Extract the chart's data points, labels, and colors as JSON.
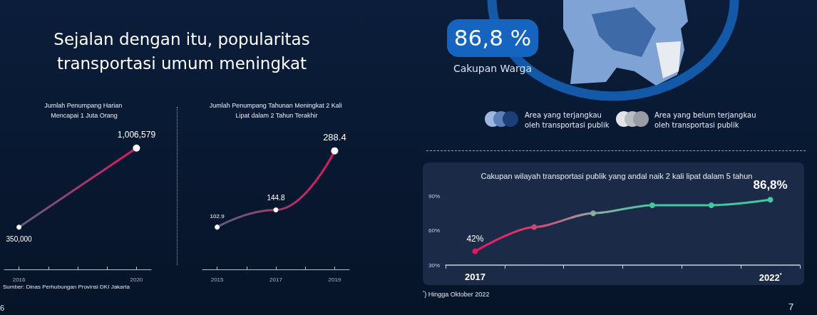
{
  "chart_data": [
    {
      "type": "other",
      "title": "Sejalan dengan itu, popularitas transportasi umum meningkat"
    },
    {
      "type": "line",
      "title": "Jumlah Penumpang Harian Mencapai 1 Juta Orang",
      "x": [
        2016,
        2020
      ],
      "xlim": [
        2015.5,
        2020.5
      ],
      "xticks": [
        2016,
        {
          "value": 2017,
          "label": null
        },
        {
          "value": 2018,
          "label": null
        },
        {
          "value": 2019,
          "label": null
        },
        2020
      ],
      "series": [
        {
          "color": "#e0185c",
          "values": [
            350000,
            1006579
          ],
          "value_labels": [
            "350,000",
            "1,006,579"
          ]
        }
      ],
      "marker": "circle",
      "tick_labels": "x",
      "annotations": [
        "Sumber: Dinas Perhubungan Provinsi DKI Jakarta",
        "6"
      ]
    },
    {
      "type": "line",
      "title": "Jumlah Penumpang Tahunan Meningkat 2 Kali Lipat dalam 2 Tahun Terakhir",
      "x": [
        2015,
        2017,
        2019
      ],
      "xlim": [
        2014.5,
        2019.5
      ],
      "xticks": [
        2015,
        {
          "value": 2016,
          "label": null
        },
        2017,
        {
          "value": 2018,
          "label": null
        },
        2019
      ],
      "series": [
        {
          "color": "#e0185c",
          "values": [
            102.9,
            144.8,
            288.4
          ]
        }
      ],
      "data_labels": true,
      "marker": "circle",
      "tick_labels": "x"
    },
    {
      "type": "other",
      "annotations": [
        "86,8 %",
        "Cakupan Warga",
        "Area yang terjangkau oleh transportasi publik",
        "Area yang belum terjangkau oleh transportasi publik"
      ]
    },
    {
      "type": "line",
      "title": "Cakupan wilayah transportasi publik yang andal naik 2 kali lipat dalam 5 tahun",
      "categories": [
        "2017",
        null,
        null,
        null,
        null,
        "2022$^{*}$"
      ],
      "ylim": [
        30,
        90
      ],
      "yticks": [
        {
          "value": 30,
          "label": "30%"
        },
        {
          "value": 60,
          "label": "60%"
        },
        {
          "value": 90,
          "label": "90%"
        }
      ],
      "series": [
        {
          "color": "#3cc39e",
          "colors": [
            "#e8175d",
            "#d93f72",
            "#8fa8a0",
            "#45c79f",
            "#45c79f",
            "#45c79f"
          ],
          "values": [
            42,
            63,
            75,
            82,
            82,
            86.8
          ],
          "value_labels": [
            "42%",
            null,
            null,
            null,
            null,
            "86,8%"
          ]
        }
      ],
      "marker": "circle",
      "annotations": [
        "$^{*}$) Hingga Oktober 2022",
        "7"
      ]
    }
  ]
}
